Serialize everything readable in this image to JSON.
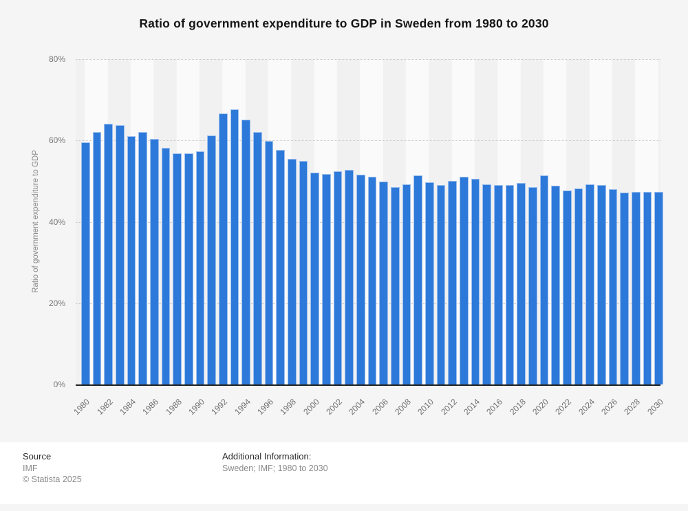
{
  "title": "Ratio of government expenditure to GDP in Sweden from 1980 to 2030",
  "y_axis": {
    "title": "Ratio of government expenditure to GDP",
    "tick_labels": [
      "0%",
      "20%",
      "40%",
      "60%",
      "80%"
    ]
  },
  "x_axis": {
    "tick_labels": [
      "1980",
      "1982",
      "1984",
      "1986",
      "1988",
      "1990",
      "1992",
      "1994",
      "1996",
      "1998",
      "2000",
      "2002",
      "2004",
      "2006",
      "2008",
      "2010",
      "2012",
      "2014",
      "2016",
      "2018",
      "2020",
      "2022",
      "2024",
      "2026",
      "2028",
      "2030"
    ]
  },
  "footer": {
    "source_label": "Source",
    "source_value": "IMF",
    "copyright": "© Statista 2025",
    "additional_info_label": "Additional Information:",
    "additional_info_value": "Sweden; IMF; 1980 to 2030"
  },
  "colors": {
    "bar": "#2d79da",
    "bar_border": "#9dbfed",
    "grid": "#c7c7c7",
    "axis_line": "#202020",
    "muted_text": "#8a8a8a"
  },
  "chart_data": {
    "type": "bar",
    "title": "Ratio of government expenditure to GDP in Sweden from 1980 to 2030",
    "xlabel": "",
    "ylabel": "Ratio of government expenditure to GDP",
    "unit": "%",
    "ylim": [
      0,
      80
    ],
    "y_ticks": [
      0,
      20,
      40,
      60,
      80
    ],
    "grid": "horizontal-dotted",
    "legend": false,
    "categories": [
      1980,
      1981,
      1982,
      1983,
      1984,
      1985,
      1986,
      1987,
      1988,
      1989,
      1990,
      1991,
      1992,
      1993,
      1994,
      1995,
      1996,
      1997,
      1998,
      1999,
      2000,
      2001,
      2002,
      2003,
      2004,
      2005,
      2006,
      2007,
      2008,
      2009,
      2010,
      2011,
      2012,
      2013,
      2014,
      2015,
      2016,
      2017,
      2018,
      2019,
      2020,
      2021,
      2022,
      2023,
      2024,
      2025,
      2026,
      2027,
      2028,
      2029,
      2030
    ],
    "values": [
      59.5,
      62.1,
      64.1,
      63.7,
      61.0,
      62.1,
      60.3,
      58.1,
      56.8,
      56.8,
      57.4,
      61.3,
      66.7,
      67.7,
      65.1,
      62.0,
      59.9,
      57.6,
      55.5,
      55.0,
      52.1,
      51.7,
      52.5,
      52.8,
      51.6,
      51.0,
      49.9,
      48.5,
      49.2,
      51.4,
      49.7,
      49.0,
      50.1,
      51.1,
      50.5,
      49.3,
      49.1,
      49.0,
      49.6,
      48.6,
      51.5,
      48.8,
      47.7,
      48.2,
      49.3,
      49.1,
      48.1,
      47.2,
      47.4,
      47.4,
      47.4
    ]
  }
}
